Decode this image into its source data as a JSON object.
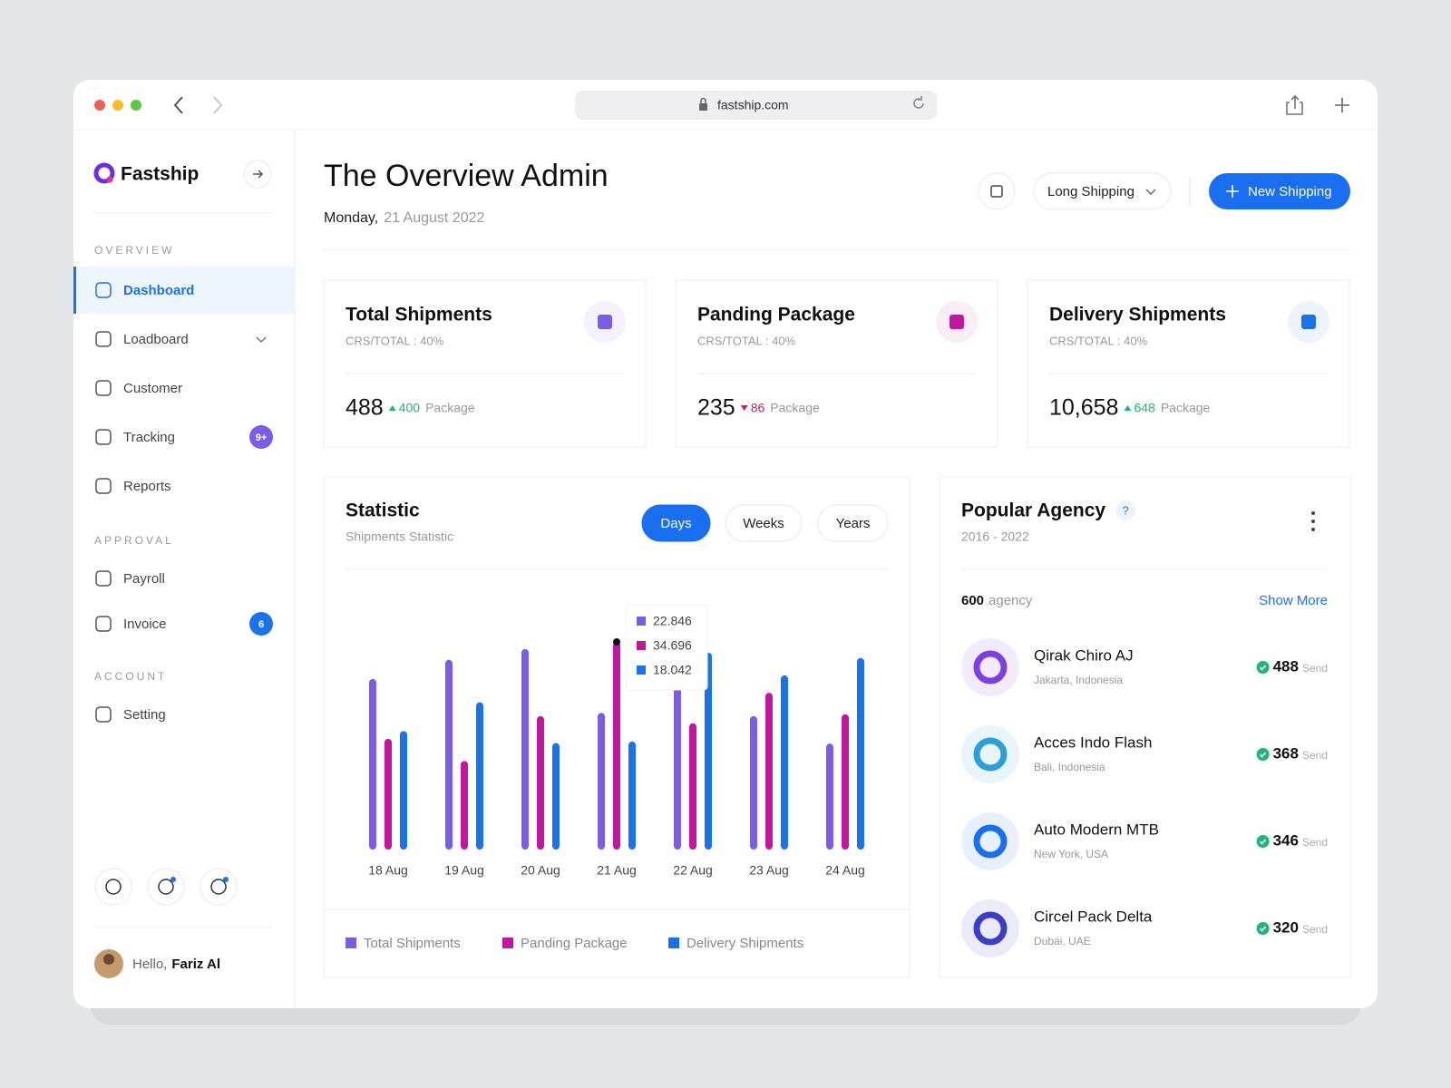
{
  "browser": {
    "url": "fastship.com"
  },
  "sidebar": {
    "brand": "Fastship",
    "sections": [
      {
        "title": "OVERVIEW",
        "items": [
          {
            "label": "Dashboard",
            "active": true
          },
          {
            "label": "Loadboard",
            "expandable": true
          },
          {
            "label": "Customer"
          },
          {
            "label": "Tracking",
            "badge": {
              "text": "9+",
              "color": "#7b5ce5"
            }
          },
          {
            "label": "Reports"
          }
        ]
      },
      {
        "title": "APPROVAL",
        "items": [
          {
            "label": "Payroll"
          },
          {
            "label": "Invoice",
            "badge": {
              "text": "6",
              "color": "#1a73e8"
            }
          }
        ]
      },
      {
        "title": "ACCOUNT",
        "items": [
          {
            "label": "Setting"
          }
        ]
      }
    ],
    "greeting": "Hello,",
    "user": "Fariz Al"
  },
  "header": {
    "title": "The Overview Admin",
    "day": "Monday,",
    "date": "21 August 2022",
    "filter": "Long Shipping",
    "button": "New Shipping"
  },
  "cards": [
    {
      "title": "Total Shipments",
      "subtitle": "CRS/TOTAL : 40%",
      "value": "488",
      "change": "400",
      "unit": "Package",
      "trend": "up",
      "color": "#7b5ce5"
    },
    {
      "title": "Panding Package",
      "subtitle": "CRS/TOTAL : 40%",
      "value": "235",
      "change": "86",
      "unit": "Package",
      "trend": "down",
      "color": "#c0179c"
    },
    {
      "title": "Delivery Shipments",
      "subtitle": "CRS/TOTAL : 40%",
      "value": "10,658",
      "change": "648",
      "unit": "Package",
      "trend": "up",
      "color": "#1a73e8"
    }
  ],
  "chart_data": {
    "type": "bar",
    "title": "Statistic",
    "subtitle": "Shipments Statistic",
    "tabs": [
      {
        "label": "Days",
        "active": true
      },
      {
        "label": "Weeks"
      },
      {
        "label": "Years"
      }
    ],
    "categories": [
      "18 Aug",
      "19 Aug",
      "20 Aug",
      "21 Aug",
      "22 Aug",
      "23 Aug",
      "24 Aug"
    ],
    "series": [
      {
        "name": "Total Shipments",
        "color": "#7b5ce5",
        "values": [
          28.5,
          31.7,
          33.5,
          22.846,
          27.4,
          22.3,
          17.7
        ]
      },
      {
        "name": "Panding Package",
        "color": "#c0179c",
        "values": [
          18.5,
          14.8,
          22.3,
          34.696,
          21.1,
          26.2,
          22.6
        ]
      },
      {
        "name": "Delivery Shipments",
        "color": "#1a73e8",
        "values": [
          19.8,
          24.6,
          17.8,
          18.042,
          32.9,
          29.1,
          32.0
        ]
      }
    ]
  },
  "agency": {
    "title": "Popular Agency",
    "help": "?",
    "period": "2016 - 2022",
    "count": "600",
    "count_unit": "agency",
    "link": "Show More",
    "items": [
      {
        "name": "Qirak Chiro AJ",
        "location": "Jakarta, Indonesia",
        "sent": "488",
        "unit": "Send",
        "color": "#7b3fe4"
      },
      {
        "name": "Acces Indo Flash",
        "location": "Bali, Indonesia",
        "sent": "368",
        "unit": "Send",
        "color": "#2a9fd8"
      },
      {
        "name": "Auto Modern MTB",
        "location": "New York, USA",
        "sent": "346",
        "unit": "Send",
        "color": "#1a6ff0"
      },
      {
        "name": "Circel Pack Delta",
        "location": "Dubai, UAE",
        "sent": "320",
        "unit": "Send",
        "color": "#3b3fc7"
      }
    ]
  }
}
